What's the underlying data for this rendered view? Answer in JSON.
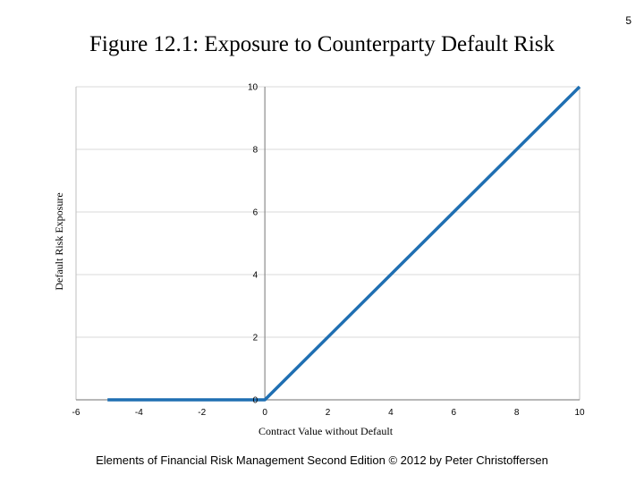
{
  "slide": {
    "page_number": "5",
    "footer": "Elements of Financial Risk Management Second Edition © 2012  by Peter Christoffersen"
  },
  "chart_data": {
    "type": "line",
    "title": "Figure 12.1: Exposure to Counterparty Default Risk",
    "xlabel": "Contract Value without Default",
    "ylabel": "Default Risk Exposure",
    "xlim": [
      -6,
      10
    ],
    "ylim": [
      0,
      10
    ],
    "x_ticks": [
      -6,
      -4,
      -2,
      0,
      2,
      4,
      6,
      8,
      10
    ],
    "y_ticks": [
      0,
      2,
      4,
      6,
      8,
      10
    ],
    "grid": true,
    "series": [
      {
        "x": [
          -5,
          0,
          10
        ],
        "y": [
          0,
          0,
          10
        ],
        "color": "#1f6fb2"
      }
    ]
  }
}
